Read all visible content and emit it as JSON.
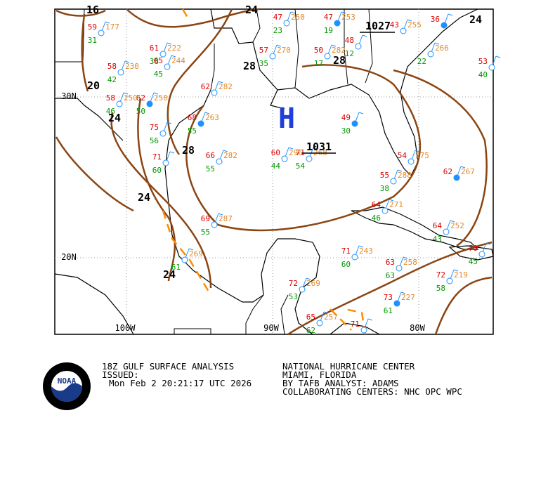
{
  "map": {
    "lat_labels": [
      "30N",
      "20N"
    ],
    "lon_labels": [
      "100W",
      "90W",
      "80W"
    ],
    "isobar_labels": [
      "16",
      "24",
      "20",
      "24",
      "28",
      "28",
      "28",
      "24",
      "24",
      "24"
    ],
    "centers": [
      {
        "label": "H"
      },
      {
        "label": "1031"
      },
      {
        "label": "1027"
      }
    ],
    "stations": [
      {
        "temp": "59",
        "dew": "31",
        "pressure": "177"
      },
      {
        "temp": "61",
        "dew": "38",
        "pressure": "222"
      },
      {
        "temp": "65",
        "dew": "45",
        "pressure": "244"
      },
      {
        "temp": "58",
        "dew": "42",
        "pressure": "230"
      },
      {
        "temp": "62",
        "dew": "50",
        "pressure": "250"
      },
      {
        "temp": "58",
        "dew": "46",
        "pressure": "250"
      },
      {
        "temp": "75",
        "dew": "56"
      },
      {
        "temp": "71",
        "dew": "60"
      },
      {
        "temp": "62",
        "pressure": "282"
      },
      {
        "temp": "68",
        "dew": "55",
        "pressure": "263"
      },
      {
        "temp": "66",
        "dew": "55",
        "pressure": "282"
      },
      {
        "temp": "69",
        "dew": "55",
        "pressure": "287"
      },
      {
        "dew": "61",
        "pressure": "269"
      },
      {
        "temp": "47",
        "dew": "23",
        "pressure": "250"
      },
      {
        "temp": "47",
        "dew": "19",
        "pressure": "253"
      },
      {
        "temp": "43",
        "pressure": "255"
      },
      {
        "temp": "57",
        "dew": "35",
        "pressure": "270"
      },
      {
        "temp": "50",
        "dew": "17",
        "pressure": "282"
      },
      {
        "temp": "48",
        "dew": "12"
      },
      {
        "temp": "36"
      },
      {
        "dew": "22",
        "pressure": "266"
      },
      {
        "temp": "53",
        "dew": "40"
      },
      {
        "temp": "71",
        "dew": "54",
        "pressure": "268"
      },
      {
        "temp": "60",
        "dew": "44",
        "pressure": "296"
      },
      {
        "temp": "49",
        "dew": "30"
      },
      {
        "temp": "54",
        "pressure": "275"
      },
      {
        "temp": "55",
        "dew": "38",
        "pressure": "288"
      },
      {
        "temp": "64",
        "dew": "46",
        "pressure": "271"
      },
      {
        "temp": "64",
        "dew": "43",
        "pressure": "252"
      },
      {
        "temp": "62",
        "pressure": "267"
      },
      {
        "temp": "70",
        "dew": "45"
      },
      {
        "temp": "71",
        "dew": "60",
        "pressure": "243"
      },
      {
        "temp": "63",
        "dew": "63",
        "pressure": "258"
      },
      {
        "temp": "72",
        "dew": "58",
        "pressure": "219"
      },
      {
        "temp": "73",
        "dew": "61",
        "pressure": "227"
      },
      {
        "temp": "72",
        "dew": "53",
        "pressure": "269"
      },
      {
        "temp": "65",
        "dew": "62",
        "pressure": "257"
      },
      {
        "temp": "71"
      }
    ]
  },
  "logo": {
    "label": "NOAA"
  },
  "footer": {
    "left": [
      "18Z GULF SURFACE ANALYSIS",
      "ISSUED:",
      "Mon Feb 2 20:21:17 UTC 2026"
    ],
    "right": [
      "NATIONAL HURRICANE CENTER",
      "MIAMI, FLORIDA",
      "BY TAFB ANALYST: ADAMS",
      "COLLABORATING CENTERS: NHC OPC WPC"
    ]
  }
}
